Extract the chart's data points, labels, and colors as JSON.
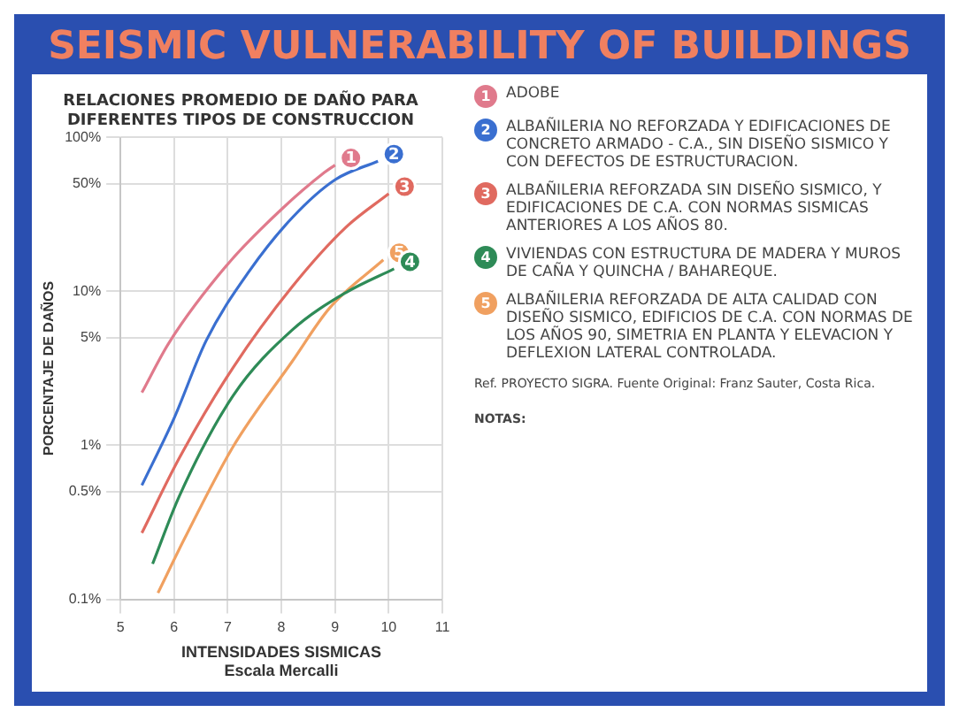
{
  "chart_data": {
    "type": "line",
    "title": "SEISMIC VULNERABILITY OF BUILDINGS",
    "subtitle": "RELACIONES PROMEDIO DE DAÑO PARA DIFERENTES TIPOS DE CONSTRUCCION",
    "xlabel": "INTENSIDADES SISMICAS\nEscala Mercalli",
    "ylabel": "PORCENTAJE DE DAÑOS",
    "series": [
      {
        "name": "ADOBE",
        "color": "#e07a8c",
        "x": [
          5.4,
          5.9,
          7.0,
          8.0,
          8.8,
          9.0
        ],
        "values": [
          2.2,
          4.6,
          15,
          34,
          59,
          66
        ]
      },
      {
        "name": "ALBAÑILERIA NO REFORZADA Y EDIFICACIONES DE CONCRETO ARMADO - C.A., SIN DISEÑO SISMICO Y CON DEFECTOS DE ESTRUCTURACION.",
        "color": "#3a6fd0",
        "x": [
          5.4,
          6.0,
          6.6,
          7.4,
          8.2,
          9.0,
          9.8
        ],
        "values": [
          0.55,
          1.5,
          4.8,
          13.5,
          30,
          53,
          70
        ]
      },
      {
        "name": "ALBAÑILERIA REFORZADA SIN DISEÑO SISMICO, Y EDIFICACIONES DE C.A. CON NORMAS SISMICAS ANTERIORES A LOS AÑOS 80.",
        "color": "#e06a60",
        "x": [
          5.4,
          6.1,
          7.1,
          8.2,
          9.2,
          10.0
        ],
        "values": [
          0.27,
          0.83,
          3.2,
          10.7,
          26,
          43
        ]
      },
      {
        "name": "VIVIENDAS CON ESTRUCTURA DE MADERA Y MUROS DE CAÑA Y QUINCHA / BAHAREQUE.",
        "color": "#2e8b57",
        "x": [
          5.6,
          6.1,
          7.1,
          8.2,
          9.2,
          10.1
        ],
        "values": [
          0.17,
          0.47,
          2.1,
          5.6,
          9.8,
          14
        ]
      },
      {
        "name": "ALBAÑILERIA REFORZADA DE ALTA CALIDAD CON DISEÑO SISMICO, EDIFICIOS DE C.A. CON NORMAS DE LOS AÑOS 90, SIMETRIA EN PLANTA Y ELEVACION Y DEFLEXION LATERAL CONTROLADA.",
        "color": "#f0a060",
        "x": [
          5.7,
          6.2,
          7.1,
          8.2,
          8.9,
          9.9
        ],
        "values": [
          0.11,
          0.25,
          0.98,
          3.5,
          7.8,
          16
        ]
      }
    ],
    "xlim": [
      5,
      11
    ],
    "xticks": [
      5,
      6,
      7,
      8,
      9,
      10,
      11
    ],
    "ylim": [
      0.1,
      100
    ],
    "yticks": [
      {
        "value": 0.1,
        "label": "0.1%"
      },
      {
        "value": 0.5,
        "label": "0.5%"
      },
      {
        "value": 1,
        "label": "1%"
      },
      {
        "value": 5,
        "label": "5%"
      },
      {
        "value": 10,
        "label": "10%"
      },
      {
        "value": 50,
        "label": "50%"
      },
      {
        "value": 100,
        "label": "100%"
      }
    ],
    "log": true,
    "grid": true,
    "marker": "none",
    "line_style": "solid",
    "legend": "right",
    "annotations": [
      {
        "text": "1",
        "x": 9.0,
        "y": 66
      },
      {
        "text": "2",
        "x": 9.8,
        "y": 70
      },
      {
        "text": "3",
        "x": 10.0,
        "y": 43
      },
      {
        "text": "5",
        "x": 9.9,
        "y": 16
      },
      {
        "text": "4",
        "x": 10.1,
        "y": 14
      },
      "Ref. PROYECTO SIGRA. Fuente Original: Franz Sauter, Costa Rica.",
      "NOTAS:"
    ]
  }
}
